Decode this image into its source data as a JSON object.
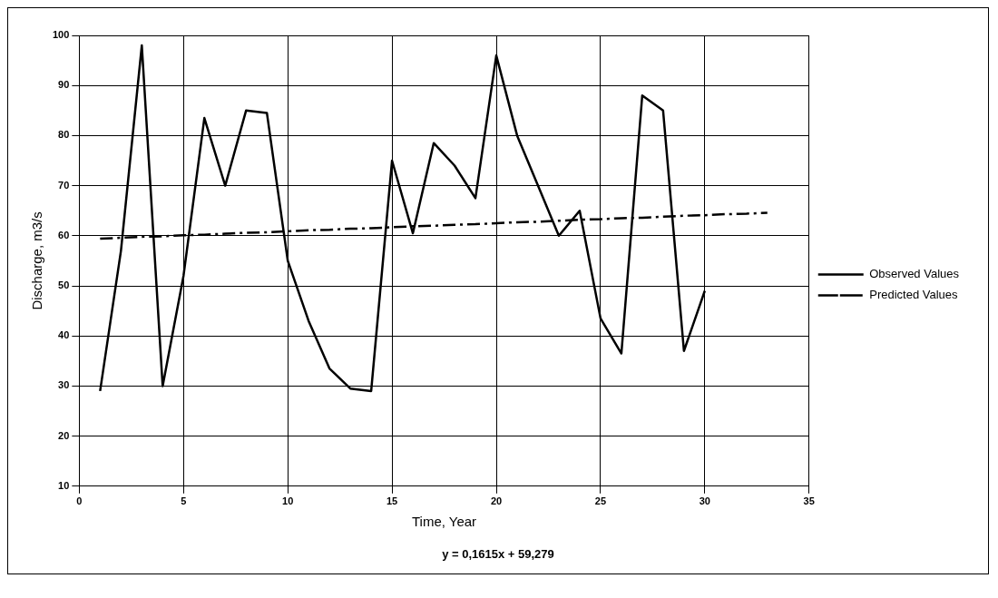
{
  "chart_data": {
    "type": "line",
    "xlabel": "Time, Year",
    "ylabel": "Discharge, m3/s",
    "xlim": [
      0,
      35
    ],
    "xticks": [
      0,
      5,
      10,
      15,
      20,
      25,
      30,
      35
    ],
    "ylim": [
      10,
      100
    ],
    "yticks": [
      10,
      20,
      30,
      40,
      50,
      60,
      70,
      80,
      90,
      100
    ],
    "grid": true,
    "legend": "right",
    "marker": "none",
    "series": [
      {
        "name": "Observed Values",
        "color": "#000000",
        "line_style": "solid",
        "x": [
          1,
          2,
          3,
          4,
          5,
          6,
          7,
          8,
          9,
          10,
          11,
          12,
          13,
          14,
          15,
          16,
          17,
          18,
          19,
          20,
          21,
          22,
          23,
          24,
          25,
          26,
          27,
          28,
          29,
          30
        ],
        "values": [
          29,
          57,
          98,
          30,
          52,
          83.5,
          70,
          85,
          84.5,
          55,
          43,
          33.5,
          29.5,
          29,
          75,
          60.5,
          78.5,
          74,
          67.5,
          96,
          80,
          70,
          60,
          65,
          43.5,
          36.5,
          88,
          85,
          37,
          49
        ]
      },
      {
        "name": "Predicted Values",
        "color": "#000000",
        "line_style": "dashed",
        "x": [
          1,
          2,
          3,
          4,
          5,
          6,
          7,
          8,
          9,
          10,
          11,
          12,
          13,
          14,
          15,
          16,
          17,
          18,
          19,
          20,
          21,
          22,
          23,
          24,
          25,
          26,
          27,
          28,
          29,
          30,
          31,
          32,
          33
        ],
        "values": [
          59.4,
          59.6,
          59.8,
          59.9,
          60.1,
          60.2,
          60.4,
          60.6,
          60.7,
          60.9,
          61.1,
          61.2,
          61.4,
          61.5,
          61.7,
          61.9,
          62.0,
          62.2,
          62.3,
          62.5,
          62.7,
          62.8,
          63.0,
          63.2,
          63.3,
          63.5,
          63.6,
          63.8,
          64.0,
          64.1,
          64.3,
          64.4,
          64.6
        ]
      }
    ],
    "annotations": [
      "y = 0,1615x + 59,279"
    ]
  }
}
